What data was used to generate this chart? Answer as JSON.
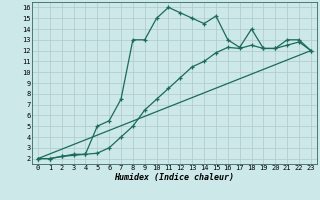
{
  "xlabel": "Humidex (Indice chaleur)",
  "bg_color": "#cce8e8",
  "grid_color": "#b0c8c8",
  "line_color": "#1a6b5a",
  "xlim": [
    -0.5,
    23.5
  ],
  "ylim": [
    1.5,
    16.5
  ],
  "xticks": [
    0,
    1,
    2,
    3,
    4,
    5,
    6,
    7,
    8,
    9,
    10,
    11,
    12,
    13,
    14,
    15,
    16,
    17,
    18,
    19,
    20,
    21,
    22,
    23
  ],
  "yticks": [
    2,
    3,
    4,
    5,
    6,
    7,
    8,
    9,
    10,
    11,
    12,
    13,
    14,
    15,
    16
  ],
  "line1_x": [
    0,
    1,
    2,
    3,
    4,
    5,
    6,
    7,
    8,
    9,
    10,
    11,
    12,
    13,
    14,
    15,
    16,
    17,
    18,
    19,
    20,
    21,
    22,
    23
  ],
  "line1_y": [
    2,
    2,
    2.2,
    2.3,
    2.4,
    5.0,
    5.5,
    7.5,
    13.0,
    13.0,
    15.0,
    16.0,
    15.5,
    15.0,
    14.5,
    15.2,
    13.0,
    12.3,
    14.0,
    12.2,
    12.2,
    13.0,
    13.0,
    12.0
  ],
  "line2_x": [
    0,
    1,
    2,
    3,
    4,
    5,
    6,
    7,
    8,
    9,
    10,
    11,
    12,
    13,
    14,
    15,
    16,
    17,
    18,
    19,
    20,
    21,
    22,
    23
  ],
  "line2_y": [
    2,
    2,
    2.2,
    2.4,
    2.4,
    2.5,
    3.0,
    4.0,
    5.0,
    6.5,
    7.5,
    8.5,
    9.5,
    10.5,
    11.0,
    11.8,
    12.3,
    12.2,
    12.5,
    12.2,
    12.2,
    12.5,
    12.8,
    12.0
  ],
  "line3_x": [
    0,
    23
  ],
  "line3_y": [
    2,
    12
  ]
}
